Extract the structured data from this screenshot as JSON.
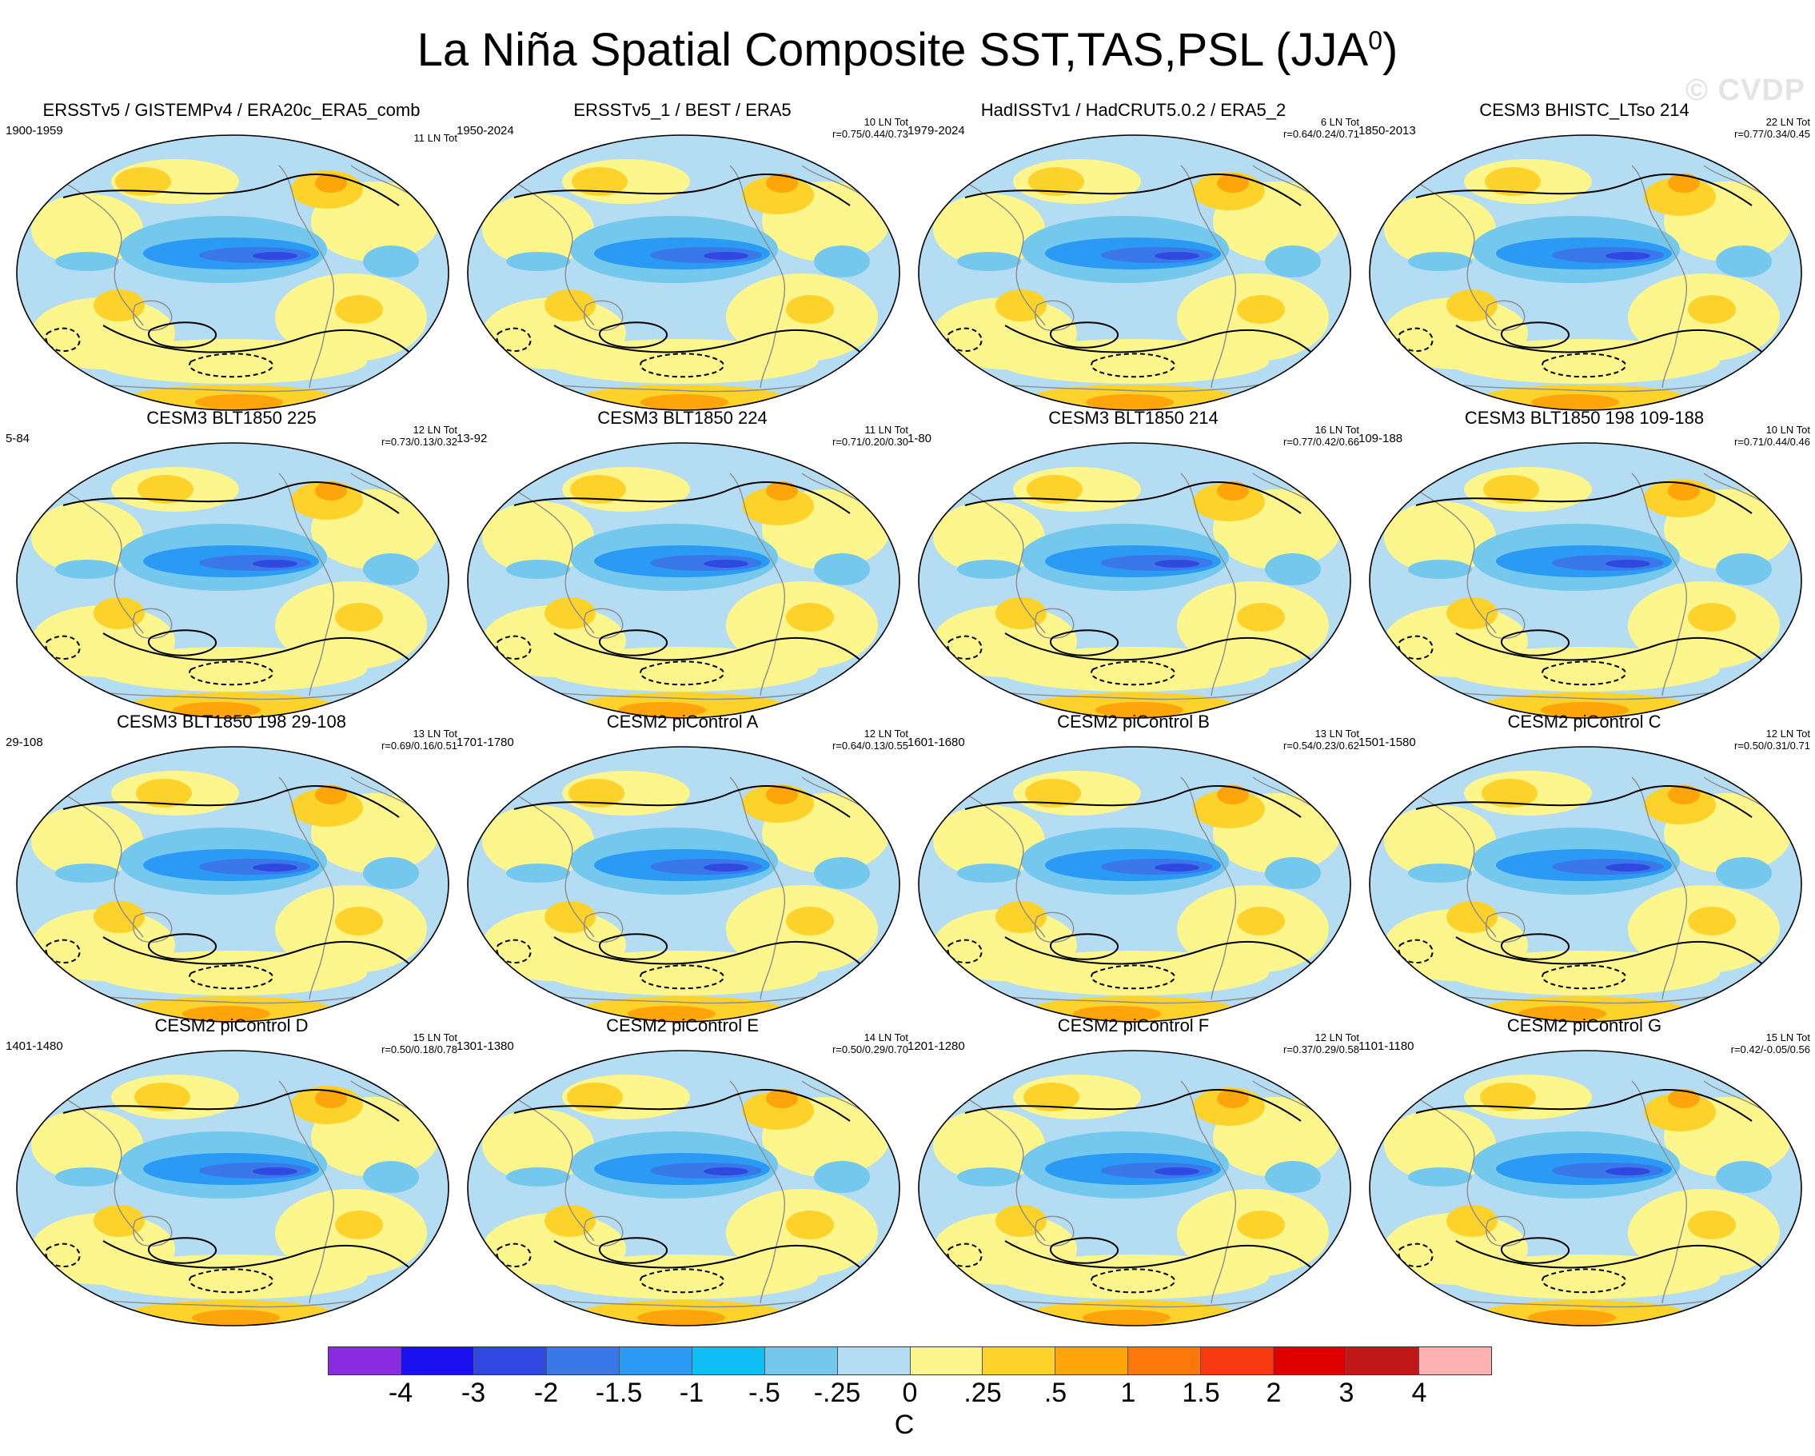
{
  "title": {
    "main": "La Niña Spatial Composite SST,TAS,PSL (JJA",
    "superscript": "0",
    "close": ")"
  },
  "watermark": "© CVDP",
  "panels": [
    {
      "title": "ERSSTv5 / GISTEMPv4 / ERA20c_ERA5_comb",
      "years": "1900-1959",
      "count": "11 LN Tot",
      "corr": ""
    },
    {
      "title": "ERSSTv5_1 / BEST / ERA5",
      "years": "1950-2024",
      "count": "10 LN Tot",
      "corr": "r=0.75/0.44/0.73"
    },
    {
      "title": "HadISSTv1 / HadCRUT5.0.2 / ERA5_2",
      "years": "1979-2024",
      "count": "6 LN Tot",
      "corr": "r=0.64/0.24/0.71"
    },
    {
      "title": "CESM3 BHISTC_LTso 214",
      "years": "1850-2013",
      "count": "22 LN Tot",
      "corr": "r=0.77/0.34/0.45"
    },
    {
      "title": "CESM3 BLT1850 225",
      "years": "5-84",
      "count": "12 LN Tot",
      "corr": "r=0.73/0.13/0.32"
    },
    {
      "title": "CESM3 BLT1850 224",
      "years": "13-92",
      "count": "11 LN Tot",
      "corr": "r=0.71/0.20/0.30"
    },
    {
      "title": "CESM3 BLT1850 214",
      "years": "1-80",
      "count": "16 LN Tot",
      "corr": "r=0.77/0.42/0.66"
    },
    {
      "title": "CESM3 BLT1850 198 109-188",
      "years": "109-188",
      "count": "10 LN Tot",
      "corr": "r=0.71/0.44/0.46"
    },
    {
      "title": "CESM3 BLT1850 198 29-108",
      "years": "29-108",
      "count": "13 LN Tot",
      "corr": "r=0.69/0.16/0.51"
    },
    {
      "title": "CESM2 piControl A",
      "years": "1701-1780",
      "count": "12 LN Tot",
      "corr": "r=0.64/0.13/0.55"
    },
    {
      "title": "CESM2 piControl B",
      "years": "1601-1680",
      "count": "13 LN Tot",
      "corr": "r=0.54/0.23/0.62"
    },
    {
      "title": "CESM2 piControl C",
      "years": "1501-1580",
      "count": "12 LN Tot",
      "corr": "r=0.50/0.31/0.71"
    },
    {
      "title": "CESM2 piControl D",
      "years": "1401-1480",
      "count": "15 LN Tot",
      "corr": "r=0.50/0.18/0.78"
    },
    {
      "title": "CESM2 piControl E",
      "years": "1301-1380",
      "count": "14 LN Tot",
      "corr": "r=0.50/0.29/0.70"
    },
    {
      "title": "CESM2 piControl F",
      "years": "1201-1280",
      "count": "12 LN Tot",
      "corr": "r=0.37/0.29/0.58"
    },
    {
      "title": "CESM2 piControl G",
      "years": "1101-1180",
      "count": "15 LN Tot",
      "corr": "r=0.42/-0.05/0.56"
    }
  ],
  "colorbar": {
    "colors": [
      "#8a2be2",
      "#1a10f0",
      "#2f48e0",
      "#3a78ea",
      "#2a9af5",
      "#10bef5",
      "#74c8ee",
      "#b4dcf2",
      "#fdf68c",
      "#fdd22a",
      "#fda50a",
      "#fd780a",
      "#f83a10",
      "#e00000",
      "#c01818",
      "#fdb2b2"
    ],
    "ticks": [
      "-4",
      "-3",
      "-2",
      "-1.5",
      "-1",
      "-.5",
      "-.25",
      "0",
      ".25",
      ".5",
      "1",
      "1.5",
      "2",
      "3",
      "4"
    ],
    "units": "C"
  },
  "map_colors": {
    "ocean_background": "#b4dcf2",
    "warm_light": "#fdf68c",
    "warm_mid": "#fdd22a",
    "warm_strong": "#fda50a",
    "warm_hot": "#fd780a",
    "cold_mid": "#74c8ee",
    "cold_strong": "#2a9af5",
    "cold_core": "#3a78ea",
    "cold_extreme": "#2f48e0",
    "coast": "#8c8c8c",
    "contour": "#000000"
  }
}
